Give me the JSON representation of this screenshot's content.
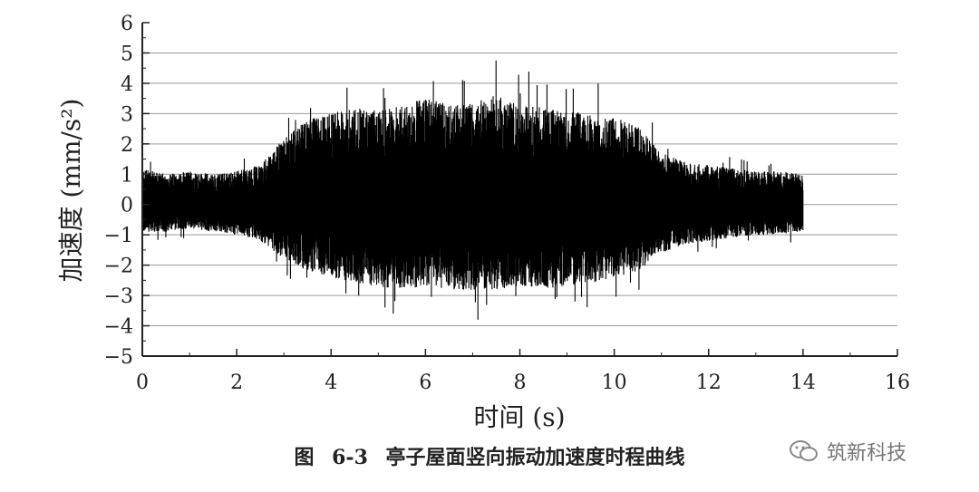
{
  "chart_data": {
    "type": "line",
    "title": "",
    "xlabel": "时间 (s)",
    "ylabel": "加速度 (mm/s²)",
    "xlim": [
      0,
      16
    ],
    "ylim": [
      -5,
      6
    ],
    "xticks": [
      0,
      2,
      4,
      6,
      8,
      10,
      12,
      14,
      16
    ],
    "yticks": [
      -5,
      -4,
      -3,
      -2,
      -1,
      0,
      1,
      2,
      3,
      4,
      5,
      6
    ],
    "grid": "horizontal",
    "line_color": "#000000",
    "series": [
      {
        "x": [
          0,
          0.5,
          1,
          1.5,
          2,
          2.5,
          3,
          3.5,
          4,
          4.5,
          5,
          5.5,
          6,
          6.5,
          7,
          7.5,
          8,
          8.5,
          9,
          9.5,
          10,
          10.5,
          11,
          11.5,
          12,
          12.5,
          13,
          13.5,
          14
        ],
        "upper": [
          1.2,
          1.0,
          1.1,
          1.0,
          1.1,
          1.3,
          2.2,
          2.8,
          3.0,
          3.2,
          3.1,
          3.3,
          3.5,
          3.3,
          3.4,
          3.6,
          3.3,
          3.2,
          3.1,
          3.0,
          2.9,
          2.6,
          1.7,
          1.4,
          1.3,
          1.2,
          1.1,
          1.1,
          1.0
        ],
        "lower": [
          -0.9,
          -0.9,
          -0.8,
          -0.9,
          -1.0,
          -1.2,
          -1.8,
          -2.2,
          -2.4,
          -2.6,
          -2.7,
          -2.8,
          -2.7,
          -2.8,
          -2.9,
          -2.8,
          -2.7,
          -2.8,
          -2.7,
          -2.6,
          -2.4,
          -2.2,
          -1.6,
          -1.3,
          -1.2,
          -1.1,
          -1.0,
          -1.0,
          -0.9
        ]
      }
    ]
  },
  "caption": {
    "label": "图",
    "number": "6-3",
    "text": "亭子屋面竖向振动加速度时程曲线"
  },
  "watermark": {
    "text": "筑新科技"
  }
}
